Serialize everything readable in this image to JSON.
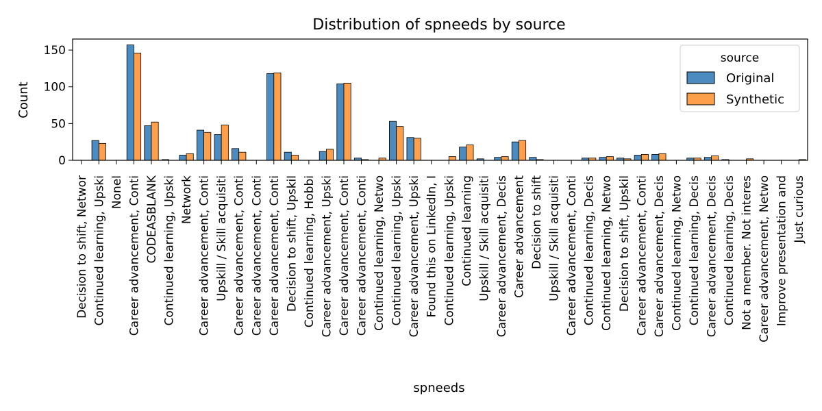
{
  "chart_data": {
    "type": "bar",
    "title": "Distribution of spneeds by source",
    "xlabel": "spneeds",
    "ylabel": "Count",
    "ylim": [
      0,
      165
    ],
    "yticks": [
      0,
      50,
      100,
      150
    ],
    "grid": false,
    "legend": {
      "title": "source",
      "placement": "top-right"
    },
    "categories": [
      "Decision to shift, Networ",
      "Continued learning, Upski",
      "Nonel",
      "Career advancement, Conti",
      "CODEASBLANK",
      "Continued learning, Upski",
      "Network",
      "Career advancement, Conti",
      "Upskill / Skill acquisiti",
      "Career advancement, Conti",
      "Career advancement, Conti",
      "Career advancement, Conti",
      "Decision to shift, Upskil",
      "Continued learning, Hobbi",
      "Career advancement, Upski",
      "Career advancement, Conti",
      "Career advancement, Conti",
      "Continued learning, Netwo",
      "Continued learning, Upski",
      "Career advancement, Upski",
      "Found this on LinkedIn, I",
      "Continued learning, Upski",
      "Continued learning",
      "Upskill / Skill acquisiti",
      "Career advancement, Decis",
      "Career advancement",
      "Decision to shift",
      "Upskill / Skill acquisiti",
      "Career advancement, Conti",
      "Continued learning, Decis",
      "Continued learning, Netwo",
      "Decision to shift, Upskil",
      "Career advancement, Conti",
      "Career advancement, Decis",
      "Continued learning, Netwo",
      "Continued learning, Decis",
      "Career advancement, Decis",
      "Continued learning, Decis",
      "Not a member. Not interes",
      "Career advancement, Netwo",
      "Improve presentation and",
      "Just curious"
    ],
    "series": [
      {
        "name": "Original",
        "color": "#4c8bbf",
        "values": [
          0,
          27,
          0,
          157,
          47,
          1,
          7,
          41,
          35,
          16,
          0,
          118,
          11,
          0,
          12,
          104,
          3,
          0,
          53,
          31,
          0,
          0,
          18,
          2,
          4,
          25,
          4,
          0,
          0,
          3,
          4,
          3,
          7,
          8,
          0,
          3,
          4,
          1,
          0,
          0,
          0,
          0
        ]
      },
      {
        "name": "Synthetic",
        "color": "#fd9f4b",
        "values": [
          0,
          23,
          0,
          146,
          52,
          0,
          9,
          38,
          48,
          11,
          0,
          119,
          7,
          0,
          15,
          105,
          1,
          3,
          46,
          30,
          0,
          5,
          21,
          0,
          5,
          27,
          1,
          0,
          0,
          3,
          5,
          2,
          8,
          9,
          0,
          3,
          6,
          0,
          2,
          0,
          0,
          1
        ]
      }
    ]
  }
}
